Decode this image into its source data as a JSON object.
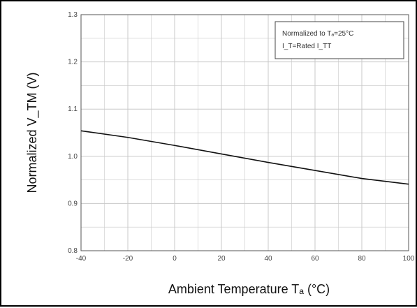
{
  "chart_data": {
    "type": "line",
    "xlabel": "Ambient Temperature Tₐ (°C)",
    "ylabel": "Normalized V_TM (V)",
    "xlim": [
      -40,
      100
    ],
    "ylim": [
      0.8,
      1.3
    ],
    "xticks": [
      -40,
      -20,
      0,
      20,
      40,
      60,
      80,
      100
    ],
    "xtick_labels": [
      "-40",
      "-20",
      "0",
      "20",
      "40",
      "60",
      "80",
      "100"
    ],
    "yticks": [
      0.8,
      0.9,
      1.0,
      1.1,
      1.2,
      1.3
    ],
    "ytick_labels": [
      "0.8",
      "0.9",
      "1.0",
      "1.1",
      "1.2",
      "1.3"
    ],
    "minor_x_step": 10,
    "minor_y_step": 0.05,
    "grid": true,
    "legend": {
      "placement": "top-right",
      "line1": "Normalized to Tₐ=25°C",
      "line2": "I_T=Rated I_TT"
    },
    "series": [
      {
        "x": [
          -40,
          -20,
          0,
          20,
          40,
          60,
          80,
          100
        ],
        "y": [
          1.054,
          1.04,
          1.023,
          1.005,
          0.987,
          0.97,
          0.953,
          0.941
        ]
      }
    ],
    "colors": {
      "line": "#111111",
      "grid": "#c8c8c8",
      "axis": "#555555"
    }
  }
}
